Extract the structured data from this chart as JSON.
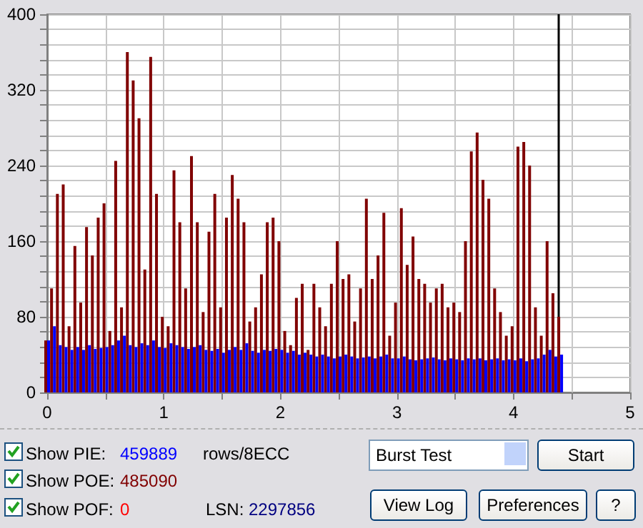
{
  "chart_data": {
    "type": "bar",
    "grid": true,
    "xlim": [
      0,
      5
    ],
    "xticks": [
      0,
      {
        "value": 0.5,
        "label": null
      },
      1,
      {
        "value": 1.5,
        "label": null
      },
      2,
      {
        "value": 2.5,
        "label": null
      },
      3,
      {
        "value": 3.5,
        "label": null
      },
      4,
      {
        "value": 4.5,
        "label": null
      },
      5
    ],
    "ylim": [
      0,
      400
    ],
    "yticks": [
      0,
      {
        "value": 16,
        "label": null
      },
      {
        "value": 32,
        "label": null
      },
      {
        "value": 48,
        "label": null
      },
      {
        "value": 64,
        "label": null
      },
      80,
      {
        "value": 96,
        "label": null
      },
      {
        "value": 112,
        "label": null
      },
      {
        "value": 128,
        "label": null
      },
      {
        "value": 144,
        "label": null
      },
      160,
      {
        "value": 176,
        "label": null
      },
      {
        "value": 192,
        "label": null
      },
      {
        "value": 208,
        "label": null
      },
      {
        "value": 224,
        "label": null
      },
      240,
      {
        "value": 256,
        "label": null
      },
      {
        "value": 272,
        "label": null
      },
      {
        "value": 288,
        "label": null
      },
      {
        "value": 304,
        "label": null
      },
      320,
      {
        "value": 336,
        "label": null
      },
      {
        "value": 352,
        "label": null
      },
      {
        "value": 368,
        "label": null
      },
      {
        "value": 384,
        "label": null
      },
      400
    ],
    "x": [
      0,
      0.05,
      0.1,
      0.15,
      0.2,
      0.25,
      0.3,
      0.35,
      0.4,
      0.45,
      0.5,
      0.55,
      0.6,
      0.65,
      0.7,
      0.75,
      0.8,
      0.85,
      0.9,
      0.95,
      1,
      1.05,
      1.1,
      1.15,
      1.2,
      1.25,
      1.3,
      1.35,
      1.4,
      1.45,
      1.5,
      1.55,
      1.6,
      1.65,
      1.7,
      1.75,
      1.8,
      1.85,
      1.9,
      1.95,
      2,
      2.05,
      2.1,
      2.15,
      2.2,
      2.25,
      2.3,
      2.35,
      2.4,
      2.45,
      2.5,
      2.55,
      2.6,
      2.65,
      2.7,
      2.75,
      2.8,
      2.85,
      2.9,
      2.95,
      3,
      3.05,
      3.1,
      3.15,
      3.2,
      3.25,
      3.3,
      3.35,
      3.4,
      3.45,
      3.5,
      3.55,
      3.6,
      3.65,
      3.7,
      3.75,
      3.8,
      3.85,
      3.9,
      3.95,
      4,
      4.05,
      4.1,
      4.15,
      4.2,
      4.25,
      4.3,
      4.35,
      4.4
    ],
    "series": [
      {
        "color": "#800000",
        "values": [
          55,
          110,
          210,
          220,
          70,
          155,
          95,
          175,
          145,
          185,
          200,
          65,
          245,
          90,
          360,
          330,
          290,
          130,
          355,
          210,
          80,
          70,
          235,
          180,
          110,
          250,
          180,
          85,
          170,
          210,
          90,
          185,
          230,
          205,
          180,
          75,
          90,
          125,
          180,
          185,
          160,
          65,
          50,
          100,
          115,
          45,
          115,
          90,
          70,
          115,
          160,
          120,
          125,
          75,
          110,
          205,
          120,
          145,
          190,
          60,
          95,
          195,
          135,
          165,
          120,
          115,
          95,
          110,
          115,
          90,
          95,
          85,
          160,
          255,
          275,
          225,
          205,
          110,
          85,
          60,
          70,
          260,
          265,
          240,
          90,
          60,
          160,
          105,
          80
        ]
      },
      {
        "color": "#0000ff",
        "values": [
          55,
          70,
          50,
          48,
          45,
          48,
          45,
          50,
          46,
          47,
          48,
          50,
          55,
          60,
          50,
          48,
          52,
          50,
          55,
          48,
          47,
          52,
          50,
          48,
          46,
          48,
          50,
          45,
          44,
          46,
          42,
          45,
          48,
          45,
          52,
          44,
          42,
          45,
          44,
          46,
          45,
          42,
          44,
          40,
          42,
          40,
          38,
          40,
          38,
          36,
          38,
          40,
          38,
          36,
          37,
          38,
          36,
          38,
          40,
          36,
          36,
          38,
          35,
          34,
          35,
          36,
          37,
          35,
          34,
          36,
          35,
          34,
          36,
          35,
          36,
          34,
          35,
          36,
          34,
          35,
          34,
          36,
          33,
          35,
          36,
          40,
          45,
          38,
          40
        ]
      }
    ],
    "ref_lines": [
      {
        "axis": "x",
        "value": 4.4,
        "color": "#000000"
      }
    ],
    "annotations": [
      "Show PIE:",
      "459889",
      "rows/8ECC",
      "Show POE:",
      "485090",
      "Show POF:",
      "0",
      "LSN:",
      "2297856",
      "Burst Test",
      "Start",
      "View Log",
      "Preferences",
      "?"
    ]
  }
}
